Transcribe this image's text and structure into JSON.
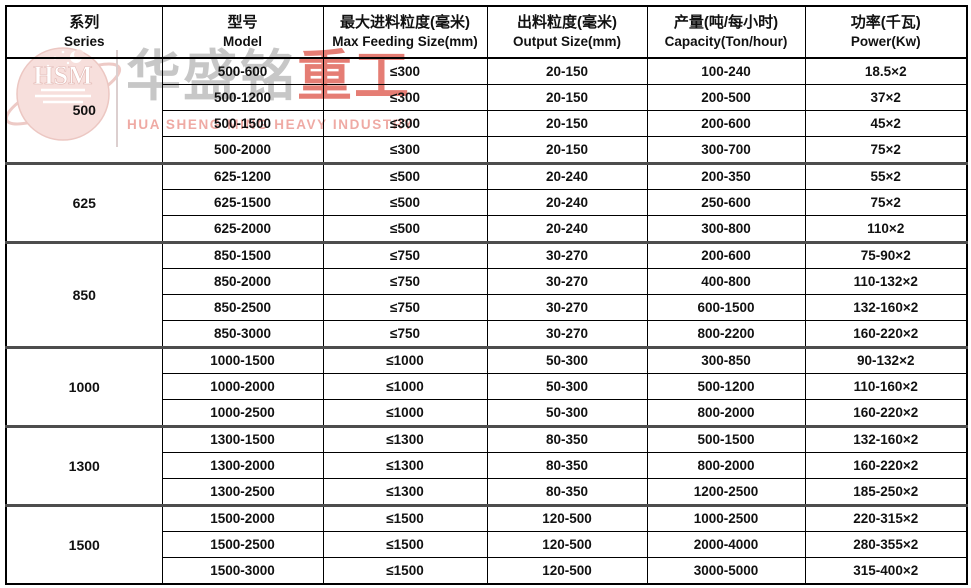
{
  "watermark": {
    "logo_text": "HSM",
    "company_cn_gray": "华盛铭",
    "company_cn_red": "重工",
    "company_en": "HUA SHENG MING HEAVY INDUSTRY"
  },
  "colors": {
    "border": "#000000",
    "group_border": "#4d4d4d",
    "watermark_gray": "#c7c7c7",
    "watermark_red": "#e57d74",
    "watermark_light_red": "#efaaa4"
  },
  "table": {
    "headers": [
      {
        "cn": "系列",
        "en": "Series"
      },
      {
        "cn": "型号",
        "en": "Model"
      },
      {
        "cn": "最大进料粒度(毫米)",
        "en": "Max Feeding Size(mm)"
      },
      {
        "cn": "出料粒度(毫米)",
        "en": "Output Size(mm)"
      },
      {
        "cn": "产量(吨/每小时)",
        "en": "Capacity(Ton/hour)"
      },
      {
        "cn": "功率(千瓦)",
        "en": "Power(Kw)"
      }
    ],
    "groups": [
      {
        "series": "500",
        "rows": [
          {
            "model": "500-600",
            "max_feeding": "≤300",
            "output": "20-150",
            "capacity": "100-240",
            "power": "18.5×2"
          },
          {
            "model": "500-1200",
            "max_feeding": "≤300",
            "output": "20-150",
            "capacity": "200-500",
            "power": "37×2"
          },
          {
            "model": "500-1500",
            "max_feeding": "≤300",
            "output": "20-150",
            "capacity": "200-600",
            "power": "45×2"
          },
          {
            "model": "500-2000",
            "max_feeding": "≤300",
            "output": "20-150",
            "capacity": "300-700",
            "power": "75×2"
          }
        ]
      },
      {
        "series": "625",
        "rows": [
          {
            "model": "625-1200",
            "max_feeding": "≤500",
            "output": "20-240",
            "capacity": "200-350",
            "power": "55×2"
          },
          {
            "model": "625-1500",
            "max_feeding": "≤500",
            "output": "20-240",
            "capacity": "250-600",
            "power": "75×2"
          },
          {
            "model": "625-2000",
            "max_feeding": "≤500",
            "output": "20-240",
            "capacity": "300-800",
            "power": "110×2"
          }
        ]
      },
      {
        "series": "850",
        "rows": [
          {
            "model": "850-1500",
            "max_feeding": "≤750",
            "output": "30-270",
            "capacity": "200-600",
            "power": "75-90×2"
          },
          {
            "model": "850-2000",
            "max_feeding": "≤750",
            "output": "30-270",
            "capacity": "400-800",
            "power": "110-132×2"
          },
          {
            "model": "850-2500",
            "max_feeding": "≤750",
            "output": "30-270",
            "capacity": "600-1500",
            "power": "132-160×2"
          },
          {
            "model": "850-3000",
            "max_feeding": "≤750",
            "output": "30-270",
            "capacity": "800-2200",
            "power": "160-220×2"
          }
        ]
      },
      {
        "series": "1000",
        "rows": [
          {
            "model": "1000-1500",
            "max_feeding": "≤1000",
            "output": "50-300",
            "capacity": "300-850",
            "power": "90-132×2"
          },
          {
            "model": "1000-2000",
            "max_feeding": "≤1000",
            "output": "50-300",
            "capacity": "500-1200",
            "power": "110-160×2"
          },
          {
            "model": "1000-2500",
            "max_feeding": "≤1000",
            "output": "50-300",
            "capacity": "800-2000",
            "power": "160-220×2"
          }
        ]
      },
      {
        "series": "1300",
        "rows": [
          {
            "model": "1300-1500",
            "max_feeding": "≤1300",
            "output": "80-350",
            "capacity": "500-1500",
            "power": "132-160×2"
          },
          {
            "model": "1300-2000",
            "max_feeding": "≤1300",
            "output": "80-350",
            "capacity": "800-2000",
            "power": "160-220×2"
          },
          {
            "model": "1300-2500",
            "max_feeding": "≤1300",
            "output": "80-350",
            "capacity": "1200-2500",
            "power": "185-250×2"
          }
        ]
      },
      {
        "series": "1500",
        "rows": [
          {
            "model": "1500-2000",
            "max_feeding": "≤1500",
            "output": "120-500",
            "capacity": "1000-2500",
            "power": "220-315×2"
          },
          {
            "model": "1500-2500",
            "max_feeding": "≤1500",
            "output": "120-500",
            "capacity": "2000-4000",
            "power": "280-355×2"
          },
          {
            "model": "1500-3000",
            "max_feeding": "≤1500",
            "output": "120-500",
            "capacity": "3000-5000",
            "power": "315-400×2"
          }
        ]
      }
    ]
  }
}
